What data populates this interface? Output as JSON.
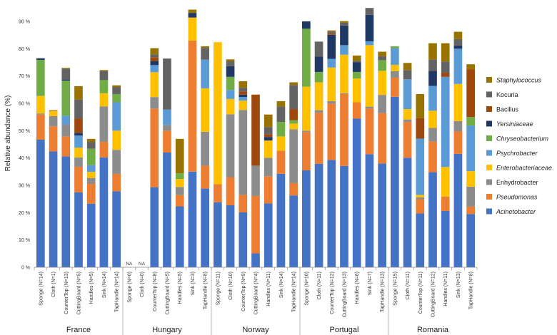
{
  "chart_data": {
    "type": "bar",
    "stacked": true,
    "ylabel": "Relative abundance (%)",
    "ylim": [
      0,
      90
    ],
    "ytick_values": [
      0,
      10,
      20,
      30,
      40,
      50,
      60,
      70,
      80,
      90
    ],
    "ytick_labels": [
      "0 %",
      "10 %",
      "20 %",
      "30 %",
      "40 %",
      "50 %",
      "60 %",
      "70 %",
      "80 %",
      "90 %"
    ],
    "grid": false,
    "legend_position": "right",
    "legend_order": [
      "Staphylococcus",
      "Kocuria",
      "Bacillus",
      "Yersiniaceae",
      "Chryseobacterium",
      "Psychrobacter",
      "Enterobacteriaceae",
      "Enhydrobacter",
      "Pseudomonas",
      "Acinetobacter"
    ],
    "italic_series": [
      "Staphylococcus",
      "Yersiniaceae",
      "Chryseobacterium",
      "Psychrobacter",
      "Enterobacteriaceae",
      "Pseudomonas",
      "Acinetobacter"
    ],
    "colors": {
      "Acinetobacter": "#4472C4",
      "Pseudomonas": "#ED7D31",
      "Enhydrobacter": "#8C8C8C",
      "Enterobacteriaceae": "#FFC000",
      "Psychrobacter": "#5B9BD5",
      "Chryseobacterium": "#70AD47",
      "Yersiniaceae": "#203864",
      "Bacillus": "#9E480E",
      "Kocuria": "#636363",
      "Staphylococcus": "#997300"
    },
    "groups": [
      {
        "name": "France",
        "categories": [
          "Sponge (N=14)",
          "Cloth (N=1)",
          "CounterTop (N=13)",
          "CuttingBoard (N=5)",
          "Handles (N=5)",
          "Sink (N=14)",
          "TapHandle (N=14)"
        ]
      },
      {
        "name": "Hungary",
        "categories": [
          "Sponge (N=0)",
          "Cloth (N=0)",
          "CounterTop (N=8)",
          "CuttingBoard (N=5)",
          "Handles (N=5)",
          "Sink (N=3)",
          "TapHandle (N=8)"
        ]
      },
      {
        "name": "Norway",
        "categories": [
          "Sponge (N=11)",
          "Cloth (N=10)",
          "CounterTop (N=9)",
          "CuttingBoard (N=4)",
          "Handles (N=11)",
          "Sink (N=14)",
          "TapHandle (N=14)"
        ]
      },
      {
        "name": "Portugal",
        "categories": [
          "Sponge (N=10)",
          "Cloth (N=11)",
          "CounterTop (N=12)",
          "CuttingBoard (N=13)",
          "Handles (N=6)",
          "Sink (N=7)",
          "TapHandle (N=13)"
        ]
      },
      {
        "name": "Romania",
        "categories": [
          "Sponge (N=15)",
          "Cloth (N=11)",
          "CounterTop (N=11)",
          "CuttingBoard (N=12)",
          "Handles (N=11)",
          "Sink (N=13)",
          "TapHandle (N=8)"
        ]
      }
    ],
    "na_label": "NA",
    "na_bars": [
      [
        1,
        0
      ],
      [
        1,
        1
      ]
    ],
    "series": [
      {
        "name": "Acinetobacter",
        "values": [
          46.7,
          42.4,
          40.6,
          27.4,
          23.3,
          40.2,
          27.8,
          0,
          0,
          29.3,
          42.0,
          22.3,
          35.0,
          28.8,
          23.8,
          22.7,
          20.1,
          5.1,
          23.4,
          34.2,
          26.3,
          35.5,
          37.9,
          39.3,
          37.1,
          54.4,
          41.4,
          38.0,
          62.4,
          40.1,
          19.7,
          34.8,
          20.6,
          41.5,
          19.5
        ]
      },
      {
        "name": "Pseudomonas",
        "values": [
          9.2,
          9.2,
          7.3,
          9.4,
          7.2,
          5.7,
          6.4,
          0,
          0,
          28.8,
          8.0,
          4.1,
          48.0,
          8.4,
          6.6,
          10.3,
          6.4,
          21.0,
          9.9,
          8.5,
          4.5,
          14.0,
          18.7,
          20.6,
          26.3,
          6.0,
          16.7,
          18.4,
          7.0,
          13.1,
          5.2,
          11.2,
          5.3,
          8.2,
          2.7
        ]
      },
      {
        "name": "Enhydrobacter",
        "values": [
          0.4,
          3.7,
          4.4,
          3.4,
          2.2,
          13.0,
          8.8,
          0,
          0,
          4.2,
          2.1,
          3.0,
          0.0,
          12.4,
          0.0,
          23.0,
          31.1,
          11.1,
          6.8,
          0.0,
          19.7,
          0.5,
          0.9,
          0.9,
          0.3,
          0.0,
          0.7,
          6.7,
          2.4,
          0.9,
          0.7,
          5.0,
          0.0,
          3.8,
          7.3
        ]
      },
      {
        "name": "Enterobacteriaceae",
        "values": [
          6.4,
          1.9,
          0.0,
          3.6,
          2.2,
          4.8,
          7.0,
          0,
          0,
          9.1,
          0.0,
          2.9,
          8.4,
          15.9,
          52.0,
          5.6,
          3.4,
          0.0,
          6.3,
          5.2,
          2.1,
          16.1,
          10.2,
          12.3,
          14.1,
          8.7,
          22.5,
          8.8,
          2.3,
          3.8,
          0.9,
          6.3,
          10.8,
          13.6,
          5.7
        ]
      },
      {
        "name": "Psychrobacter",
        "values": [
          0.0,
          0.0,
          3.2,
          4.4,
          2.5,
          0.0,
          10.4,
          0,
          0,
          2.6,
          5.6,
          0.0,
          0.0,
          10.5,
          0.0,
          3.3,
          1.3,
          0.0,
          0.0,
          0.0,
          0.0,
          0.0,
          0.0,
          3.2,
          3.5,
          0.0,
          1.4,
          0.0,
          6.1,
          10.9,
          20.6,
          9.1,
          33.0,
          12.9,
          16.7
        ]
      },
      {
        "name": "Chryseobacterium",
        "values": [
          13.2,
          0.0,
          12.8,
          0.0,
          6.0,
          4.8,
          3.0,
          0,
          0,
          0.0,
          0.0,
          2.1,
          0.0,
          0.0,
          0.0,
          4.8,
          0.0,
          0.0,
          0.0,
          5.3,
          1.2,
          21.2,
          3.8,
          0.0,
          0.0,
          2.4,
          0.0,
          3.9,
          0.7,
          0.0,
          0.0,
          0.0,
          0.0,
          0.0,
          3.1
        ]
      },
      {
        "name": "Yersiniaceae",
        "values": [
          0.6,
          0.0,
          0.5,
          1.0,
          0.0,
          0.0,
          0.0,
          0,
          0,
          1.5,
          0.0,
          0.0,
          1.7,
          0.0,
          0.0,
          3.9,
          0.9,
          0.0,
          1.3,
          0.0,
          0.0,
          2.7,
          5.6,
          8.8,
          7.2,
          3.5,
          9.7,
          0.0,
          0.0,
          0.0,
          0.0,
          5.5,
          0.0,
          1.2,
          0.0
        ]
      },
      {
        "name": "Bacillus",
        "values": [
          0.0,
          0.0,
          0.0,
          5.2,
          0.0,
          0.0,
          0.0,
          0,
          0,
          1.4,
          0.0,
          0.0,
          0.0,
          0.0,
          0.0,
          0.0,
          1.2,
          26.0,
          1.0,
          0.0,
          4.1,
          0.0,
          0.0,
          0.5,
          0.0,
          0.0,
          0.0,
          0.0,
          0.0,
          0.0,
          7.5,
          0.0,
          1.5,
          0.0,
          17.5
        ]
      },
      {
        "name": "Kocuria",
        "values": [
          0.0,
          0.0,
          3.9,
          7.0,
          2.5,
          3.3,
          2.6,
          0,
          0,
          1.0,
          18.7,
          0.0,
          0.0,
          4.3,
          0.0,
          1.8,
          1.3,
          0.0,
          2.6,
          5.6,
          8.8,
          0.0,
          5.5,
          0.7,
          1.0,
          0.6,
          2.5,
          1.4,
          0.0,
          3.4,
          0.0,
          4.1,
          4.1,
          2.3,
          0.0
        ]
      },
      {
        "name": "Staphylococcus",
        "values": [
          0.0,
          0.3,
          0.3,
          4.9,
          1.1,
          0.4,
          0.6,
          0,
          0,
          2.3,
          0.0,
          12.6,
          1.2,
          0.6,
          0.0,
          0.7,
          2.4,
          0.0,
          4.6,
          2.0,
          1.0,
          0.0,
          0.0,
          0.4,
          0.6,
          1.9,
          0.0,
          1.7,
          0.0,
          2.6,
          8.8,
          6.0,
          6.7,
          2.7,
          1.8
        ]
      }
    ]
  }
}
